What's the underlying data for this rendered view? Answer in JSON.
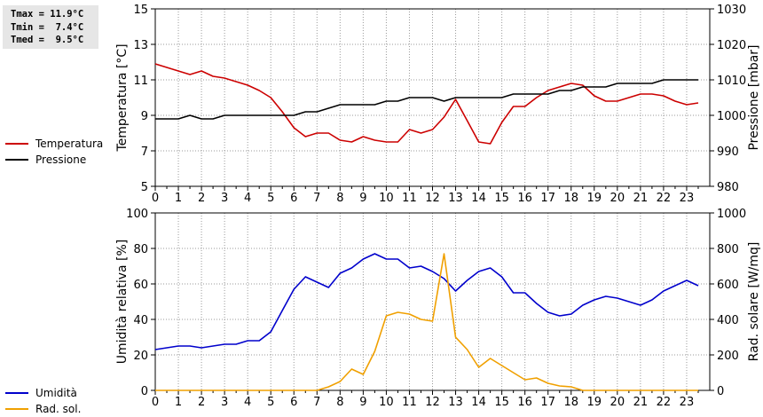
{
  "stats": {
    "tmax": "Tmax = 11.9°C",
    "tmin": "Tmin =  7.4°C",
    "tmed": "Tmed =  9.5°C"
  },
  "legend_top": [
    {
      "label": "Temperatura",
      "color": "#cc0000"
    },
    {
      "label": "Pressione",
      "color": "#000000"
    }
  ],
  "legend_bottom": [
    {
      "label": "Umidità",
      "color": "#0000cc"
    },
    {
      "label": "Rad. sol.",
      "color": "#f0a000"
    }
  ],
  "chart_data": [
    {
      "type": "line",
      "ylabel": "Temperatura [°C]",
      "y2label": "Pressione [mbar]",
      "xlim": [
        0,
        24
      ],
      "x_ticks": [
        0,
        1,
        2,
        3,
        4,
        5,
        6,
        7,
        8,
        9,
        10,
        11,
        12,
        13,
        14,
        15,
        16,
        17,
        18,
        19,
        20,
        21,
        22,
        23
      ],
      "ylim": [
        5,
        15
      ],
      "y_ticks": [
        5,
        7,
        9,
        11,
        13,
        15
      ],
      "y2lim": [
        980,
        1030
      ],
      "y2_ticks": [
        980,
        990,
        1000,
        1010,
        1020,
        1030
      ],
      "grid": true,
      "series": [
        {
          "name": "Temperatura",
          "axis": "left",
          "color": "#cc0000",
          "x": [
            0,
            0.5,
            1,
            1.5,
            2,
            2.5,
            3,
            3.5,
            4,
            4.5,
            5,
            5.5,
            6,
            6.5,
            7,
            7.5,
            8,
            8.5,
            9,
            9.5,
            10,
            10.5,
            11,
            11.5,
            12,
            12.5,
            13,
            13.5,
            14,
            14.5,
            15,
            15.5,
            16,
            16.5,
            17,
            17.5,
            18,
            18.5,
            19,
            19.5,
            20,
            20.5,
            21,
            21.5,
            22,
            22.5,
            23,
            23.5
          ],
          "y": [
            11.9,
            11.7,
            11.5,
            11.3,
            11.5,
            11.2,
            11.1,
            10.9,
            10.7,
            10.4,
            10.0,
            9.2,
            8.3,
            7.8,
            8.0,
            8.0,
            7.6,
            7.5,
            7.8,
            7.6,
            7.5,
            7.5,
            8.2,
            8.0,
            8.2,
            8.9,
            9.9,
            8.7,
            7.5,
            7.4,
            8.6,
            9.5,
            9.5,
            10.0,
            10.4,
            10.6,
            10.8,
            10.7,
            10.1,
            9.8,
            9.8,
            10.0,
            10.2,
            10.2,
            10.1,
            9.8,
            9.6,
            9.7
          ]
        },
        {
          "name": "Pressione",
          "axis": "right",
          "color": "#000000",
          "x": [
            0,
            0.5,
            1,
            1.5,
            2,
            2.5,
            3,
            3.5,
            4,
            4.5,
            5,
            5.5,
            6,
            6.5,
            7,
            7.5,
            8,
            8.5,
            9,
            9.5,
            10,
            10.5,
            11,
            11.5,
            12,
            12.5,
            13,
            13.5,
            14,
            14.5,
            15,
            15.5,
            16,
            16.5,
            17,
            17.5,
            18,
            18.5,
            19,
            19.5,
            20,
            20.5,
            21,
            21.5,
            22,
            22.5,
            23,
            23.5
          ],
          "y": [
            999,
            999,
            999,
            1000,
            999,
            999,
            1000,
            1000,
            1000,
            1000,
            1000,
            1000,
            1000,
            1001,
            1001,
            1002,
            1003,
            1003,
            1003,
            1003,
            1004,
            1004,
            1005,
            1005,
            1005,
            1004,
            1005,
            1005,
            1005,
            1005,
            1005,
            1006,
            1006,
            1006,
            1006,
            1007,
            1007,
            1008,
            1008,
            1008,
            1009,
            1009,
            1009,
            1009,
            1010,
            1010,
            1010,
            1010
          ]
        }
      ]
    },
    {
      "type": "line",
      "ylabel": "Umidità relativa [%]",
      "y2label": "Rad. solare [W/mq]",
      "xlim": [
        0,
        24
      ],
      "x_ticks": [
        0,
        1,
        2,
        3,
        4,
        5,
        6,
        7,
        8,
        9,
        10,
        11,
        12,
        13,
        14,
        15,
        16,
        17,
        18,
        19,
        20,
        21,
        22,
        23
      ],
      "ylim": [
        0,
        100
      ],
      "y_ticks": [
        0,
        20,
        40,
        60,
        80,
        100
      ],
      "y2lim": [
        0,
        1000
      ],
      "y2_ticks": [
        0,
        200,
        400,
        600,
        800,
        1000
      ],
      "grid": true,
      "series": [
        {
          "name": "Umidità",
          "axis": "left",
          "color": "#0000cc",
          "x": [
            0,
            0.5,
            1,
            1.5,
            2,
            2.5,
            3,
            3.5,
            4,
            4.5,
            5,
            5.5,
            6,
            6.5,
            7,
            7.5,
            8,
            8.5,
            9,
            9.5,
            10,
            10.5,
            11,
            11.5,
            12,
            12.5,
            13,
            13.5,
            14,
            14.5,
            15,
            15.5,
            16,
            16.5,
            17,
            17.5,
            18,
            18.5,
            19,
            19.5,
            20,
            20.5,
            21,
            21.5,
            22,
            22.5,
            23,
            23.5
          ],
          "y": [
            23,
            24,
            25,
            25,
            24,
            25,
            26,
            26,
            28,
            28,
            33,
            45,
            57,
            64,
            61,
            58,
            66,
            69,
            74,
            77,
            74,
            74,
            69,
            70,
            67,
            63,
            56,
            62,
            67,
            69,
            64,
            55,
            55,
            49,
            44,
            42,
            43,
            48,
            51,
            53,
            52,
            50,
            48,
            51,
            56,
            59,
            62,
            59
          ]
        },
        {
          "name": "Rad. sol.",
          "axis": "right",
          "color": "#f0a000",
          "x": [
            0,
            0.5,
            1,
            1.5,
            2,
            2.5,
            3,
            3.5,
            4,
            4.5,
            5,
            5.5,
            6,
            6.5,
            7,
            7.5,
            8,
            8.5,
            9,
            9.5,
            10,
            10.5,
            11,
            11.5,
            12,
            12.5,
            13,
            13.5,
            14,
            14.5,
            15,
            15.5,
            16,
            16.5,
            17,
            17.5,
            18,
            18.5,
            19,
            19.5,
            20,
            20.5,
            21,
            21.5,
            22,
            22.5,
            23,
            23.5
          ],
          "y": [
            0,
            0,
            0,
            0,
            0,
            0,
            0,
            0,
            0,
            0,
            0,
            0,
            0,
            0,
            0,
            20,
            50,
            120,
            90,
            220,
            420,
            440,
            430,
            400,
            390,
            770,
            300,
            230,
            130,
            180,
            140,
            100,
            60,
            70,
            40,
            25,
            20,
            0,
            0,
            0,
            0,
            0,
            0,
            0,
            0,
            0,
            0,
            0
          ]
        }
      ]
    }
  ]
}
